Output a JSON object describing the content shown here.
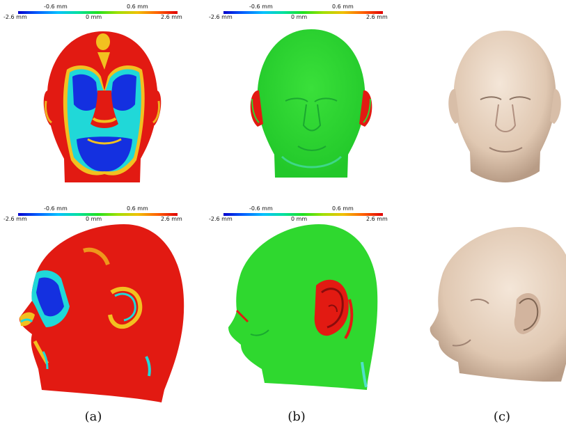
{
  "colorbars": [
    {
      "min": "-2.6 mm",
      "mid_low": "-0.6 mm",
      "zero": "0 mm",
      "mid_high": "0.6 mm",
      "max": "2.6 mm"
    },
    {
      "min": "-2.6 mm",
      "mid_low": "-0.6 mm",
      "zero": "0 mm",
      "mid_high": "0.6 mm",
      "max": "2.6 mm"
    },
    {
      "min": "-2.6 mm",
      "mid_low": "-0.6 mm",
      "zero": "0 mm",
      "mid_high": "0.6 mm",
      "max": "2.6 mm"
    },
    {
      "min": "-2.6 mm",
      "mid_low": "-0.6 mm",
      "zero": "0 mm",
      "mid_high": "0.6 mm",
      "max": "2.6 mm"
    }
  ],
  "captions": [
    "(a)",
    "(b)",
    "(c)"
  ],
  "colors": {
    "high": "#e01010",
    "low": "#0a1ad8",
    "neutral": "#2fd82f",
    "skin": "#e3cdb8"
  }
}
